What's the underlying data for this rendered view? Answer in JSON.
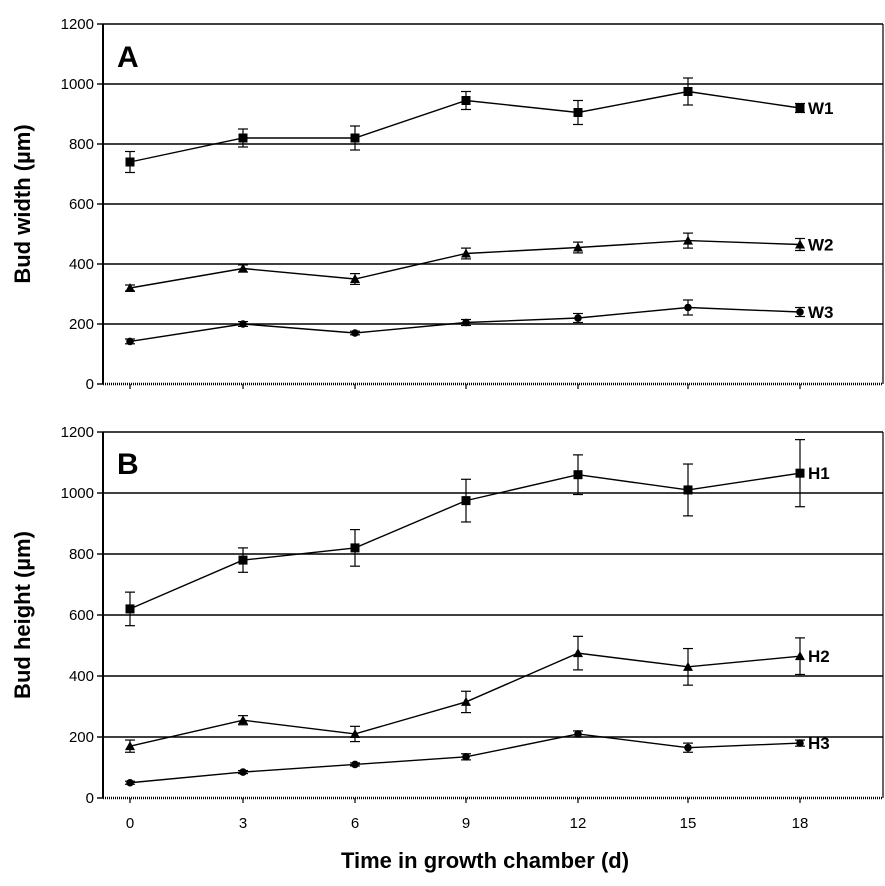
{
  "chart_data": [
    {
      "type": "line",
      "panel_label": "A",
      "ylabel": "Bud width (µm)",
      "xlabel": "",
      "x": [
        0,
        3,
        6,
        9,
        12,
        15,
        18
      ],
      "ylim": [
        0,
        1200
      ],
      "yticks": [
        0,
        200,
        400,
        600,
        800,
        1000,
        1200
      ],
      "grid": "horizontal",
      "series": [
        {
          "name": "W1",
          "marker": "square",
          "values": [
            740,
            820,
            820,
            945,
            905,
            975,
            920
          ],
          "errors": [
            35,
            30,
            40,
            30,
            40,
            45,
            15
          ]
        },
        {
          "name": "W2",
          "marker": "triangle",
          "values": [
            320,
            385,
            350,
            435,
            455,
            478,
            465
          ],
          "errors": [
            10,
            12,
            18,
            18,
            18,
            25,
            20
          ]
        },
        {
          "name": "W3",
          "marker": "circle",
          "values": [
            142,
            200,
            170,
            205,
            220,
            255,
            240
          ],
          "errors": [
            8,
            8,
            6,
            10,
            15,
            25,
            15
          ]
        }
      ]
    },
    {
      "type": "line",
      "panel_label": "B",
      "ylabel": "Bud height (µm)",
      "xlabel": "Time in growth chamber (d)",
      "x": [
        0,
        3,
        6,
        9,
        12,
        15,
        18
      ],
      "ylim": [
        0,
        1200
      ],
      "yticks": [
        0,
        200,
        400,
        600,
        800,
        1000,
        1200
      ],
      "grid": "horizontal",
      "series": [
        {
          "name": "H1",
          "marker": "square",
          "values": [
            620,
            780,
            820,
            975,
            1060,
            1010,
            1065
          ],
          "errors": [
            55,
            40,
            60,
            70,
            65,
            85,
            110
          ]
        },
        {
          "name": "H2",
          "marker": "triangle",
          "values": [
            170,
            255,
            210,
            315,
            475,
            430,
            465
          ],
          "errors": [
            20,
            15,
            25,
            35,
            55,
            60,
            60
          ]
        },
        {
          "name": "H3",
          "marker": "circle",
          "values": [
            50,
            85,
            110,
            135,
            210,
            165,
            180
          ],
          "errors": [
            5,
            5,
            5,
            10,
            10,
            15,
            10
          ]
        }
      ]
    }
  ]
}
